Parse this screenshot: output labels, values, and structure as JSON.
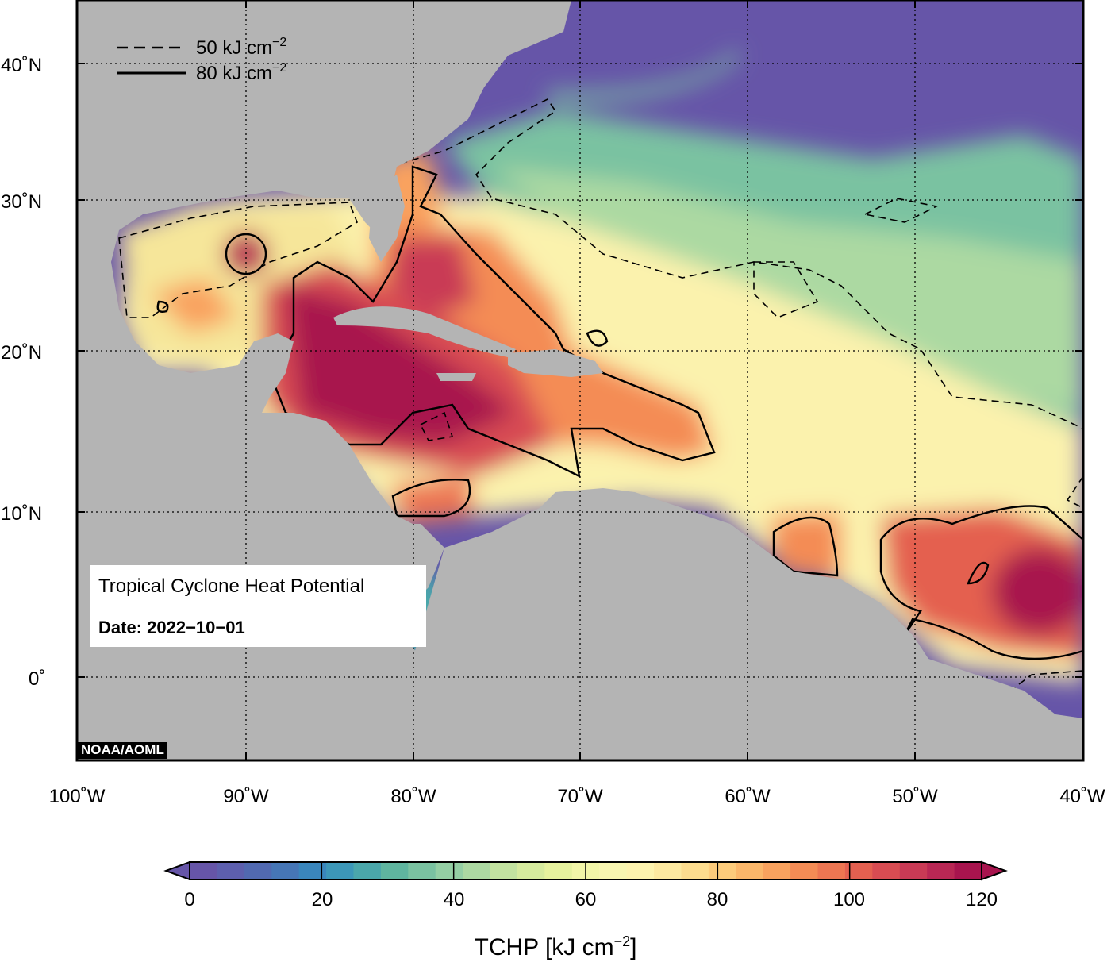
{
  "map": {
    "lon_labels": [
      "100˚W",
      "90˚W",
      "80˚W",
      "70˚W",
      "60˚W",
      "50˚W",
      "40˚W"
    ],
    "lat_labels": [
      "40˚N",
      "30˚N",
      "20˚N",
      "10˚N",
      "0˚"
    ],
    "legend": {
      "dashed_label": "50 kJ cm",
      "solid_label": "80 kJ cm",
      "unit_exponent": "−2"
    },
    "info_box": {
      "title": "Tropical Cyclone Heat Potential",
      "date": "Date: 2022−10−01"
    },
    "credit": "NOAA/AOML",
    "colors": {
      "land": "#b4b4b4",
      "low": "#6655a8",
      "mid": "#fbf5b3",
      "high": "#a8144e"
    }
  },
  "colorbar": {
    "ticks": [
      "0",
      "20",
      "40",
      "60",
      "80",
      "100",
      "120"
    ],
    "title_main": "TCHP [kJ cm",
    "title_exp": "−2",
    "title_end": "]",
    "colors": [
      "#6655a8",
      "#5d5fae",
      "#5169b1",
      "#4676b6",
      "#3a86bc",
      "#3c97b8",
      "#4aa7ab",
      "#5fb59f",
      "#7ac2a1",
      "#94cfa4",
      "#acd9a2",
      "#c3e3a0",
      "#d6eb9e",
      "#e6f29e",
      "#f2f6a8",
      "#f8f6b1",
      "#fdf3ae",
      "#fde9a0",
      "#fcdc8e",
      "#fccb7b",
      "#fbb76a",
      "#f9a25e",
      "#f48c55",
      "#ed7652",
      "#e46050",
      "#d84c52",
      "#c93a55",
      "#b92754",
      "#a8144e"
    ]
  }
}
